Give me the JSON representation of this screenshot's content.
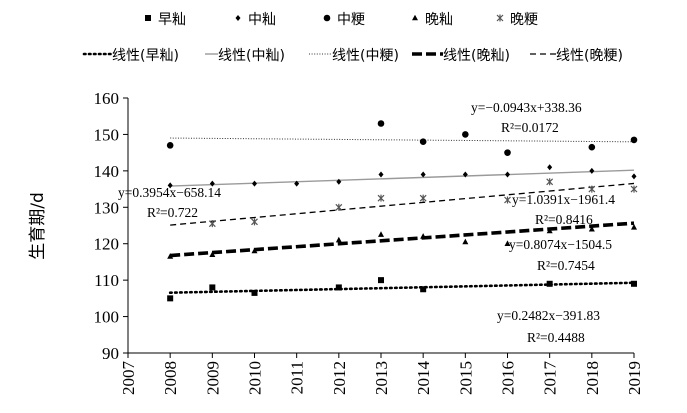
{
  "chart_data": {
    "type": "scatter",
    "ylabel": "生育期/d",
    "xlabel": "",
    "xlim": [
      2007,
      2019
    ],
    "ylim": [
      90,
      160
    ],
    "x_ticks": [
      2007,
      2008,
      2009,
      2010,
      2011,
      2012,
      2013,
      2014,
      2015,
      2016,
      2017,
      2018,
      2019
    ],
    "y_ticks": [
      90,
      100,
      110,
      120,
      130,
      140,
      150,
      160
    ],
    "grid": false,
    "legend_position": "top",
    "series": [
      {
        "name": "早籼",
        "marker": "square",
        "x": [
          2008,
          2009,
          2010,
          2012,
          2013,
          2014,
          2017,
          2019
        ],
        "y": [
          105,
          108,
          106.5,
          108,
          110,
          107.5,
          109,
          109
        ]
      },
      {
        "name": "中籼",
        "marker": "diamond",
        "x": [
          2008,
          2009,
          2010,
          2011,
          2012,
          2013,
          2014,
          2015,
          2016,
          2017,
          2018,
          2019
        ],
        "y": [
          136,
          136.5,
          136.5,
          136.5,
          137,
          139,
          139,
          139,
          139,
          141,
          140,
          138.5
        ]
      },
      {
        "name": "中粳",
        "marker": "circle",
        "x": [
          2008,
          2013,
          2014,
          2015,
          2016,
          2018,
          2019
        ],
        "y": [
          147,
          153,
          148,
          150,
          145,
          146.5,
          148.5
        ]
      },
      {
        "name": "晚籼",
        "marker": "triangle",
        "x": [
          2008,
          2009,
          2010,
          2012,
          2013,
          2014,
          2015,
          2016,
          2017,
          2018,
          2019
        ],
        "y": [
          116.5,
          117,
          118,
          121,
          122.5,
          122,
          120.5,
          120,
          123.5,
          124,
          124.5
        ]
      },
      {
        "name": "晚粳",
        "marker": "asterisk",
        "x": [
          2009,
          2010,
          2012,
          2013,
          2014,
          2016,
          2017,
          2018,
          2019
        ],
        "y": [
          125.5,
          126,
          130,
          132.5,
          132.5,
          132,
          137,
          135,
          135
        ]
      }
    ],
    "trendlines": [
      {
        "name": "线性(早籼)",
        "style": "dotted",
        "slope": 0.2482,
        "intercept": -391.83,
        "equation": "y=0.2482x−391.83",
        "r2": "R²=0.4488"
      },
      {
        "name": "线性(中籼)",
        "style": "solid",
        "slope": 0.3954,
        "intercept": -658.14,
        "equation": "y=0.3954x−658.14",
        "r2": "R²=0.722"
      },
      {
        "name": "线性(中粳)",
        "style": "fine-dotted",
        "slope": -0.0943,
        "intercept": 338.36,
        "equation": "y=−0.0943x+338.36",
        "r2": "R²=0.0172"
      },
      {
        "name": "线性(晚籼)",
        "style": "thick-dashed",
        "slope": 0.8074,
        "intercept": -1504.5,
        "equation": "y=0.8074x−1504.5",
        "r2": "R²=0.7454"
      },
      {
        "name": "线性(晚粳)",
        "style": "dashed",
        "slope": 1.0391,
        "intercept": -1961.4,
        "equation": "y=1.0391x−1961.4",
        "r2": "R²=0.8416"
      }
    ],
    "colors": {
      "marker": "#000000",
      "trend_mid_indica": "#9a9a9a",
      "axis": "#000000"
    }
  }
}
